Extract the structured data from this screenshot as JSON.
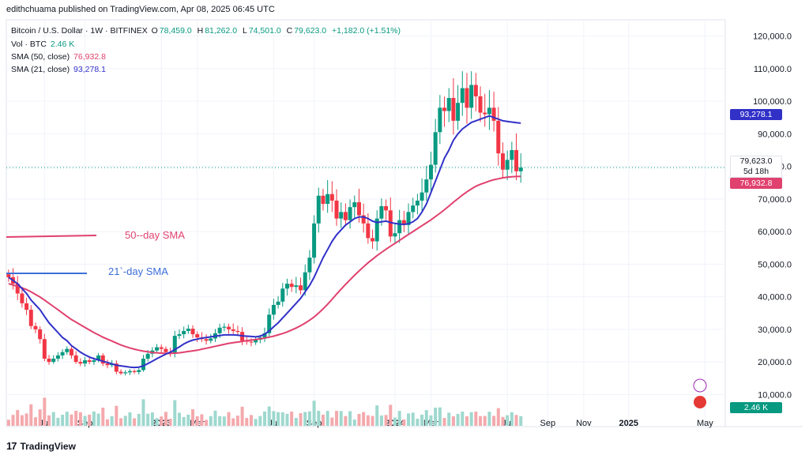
{
  "header": {
    "publisher": "edithchuama published on TradingView.com, Apr 08, 2025 06:45 UTC"
  },
  "legend": {
    "symbol": "Bitcoin / U.S. Dollar · 1W · BITFINEX",
    "ohlc": [
      {
        "k": "O",
        "v": "78,459.0"
      },
      {
        "k": "H",
        "v": "81,262.0"
      },
      {
        "k": "L",
        "v": "74,501.0"
      },
      {
        "k": "C",
        "v": "79,623.0"
      }
    ],
    "change": "+1,182.0 (+1.51%)",
    "vol_label": "Vol · BTC",
    "vol_value": "2.46 K",
    "sma50_label": "SMA (50, close)",
    "sma50_value": "76,932.8",
    "sma21_label": "SMA (21, close)",
    "sma21_value": "93,278.1"
  },
  "tags": {
    "sma21": "93,278.1",
    "price": "79,623.0",
    "countdown": "5d 18h",
    "sma50": "76,932.8",
    "volume": "2.46 K"
  },
  "brand": {
    "name": "TradingView"
  },
  "colors": {
    "up": "#089981",
    "down": "#f23645",
    "sma50": "#e0416e",
    "sma21": "#3131c8",
    "vol_up": "#9ed8ce",
    "vol_down": "#f4a9ad"
  },
  "chart_data": {
    "type": "candlestick",
    "title": "Bitcoin / U.S. Dollar · 1W · BITFINEX",
    "y_axis": {
      "min": 5000,
      "max": 125000,
      "ticks": [
        "10,000.0",
        "20,000.0",
        "30,000.0",
        "40,000.0",
        "50,000.0",
        "60,000.0",
        "70,000.0",
        "80,000.0",
        "90,000.0",
        "100,000.0",
        "110,000.0",
        "120,000.0"
      ],
      "tick_values": [
        10000,
        20000,
        30000,
        40000,
        50000,
        60000,
        70000,
        80000,
        90000,
        100000,
        110000,
        120000
      ]
    },
    "x_axis": {
      "labels": [
        {
          "t": "Jul",
          "week": 8
        },
        {
          "t": "Sep",
          "week": 17
        },
        {
          "t": "2023",
          "week": 34
        },
        {
          "t": "Mar",
          "week": 42
        },
        {
          "t": "Jul",
          "week": 59
        },
        {
          "t": "Sep",
          "week": 68
        },
        {
          "t": "2024",
          "week": 86
        },
        {
          "t": "Mar",
          "week": 94
        },
        {
          "t": "Jul",
          "week": 111
        },
        {
          "t": "Sep",
          "week": 120
        },
        {
          "t": "Nov",
          "week": 128
        },
        {
          "t": "2025",
          "week": 138
        },
        {
          "t": "May",
          "week": 155
        }
      ],
      "weeks_total": 160
    },
    "closes": [
      46000,
      44000,
      41000,
      38000,
      36000,
      31000,
      30000,
      27000,
      21000,
      20000,
      21000,
      22000,
      23000,
      24000,
      22000,
      20000,
      19500,
      20500,
      20000,
      20500,
      22000,
      19500,
      19000,
      19500,
      17000,
      16500,
      16800,
      17200,
      16900,
      17500,
      21000,
      22500,
      23500,
      24500,
      24000,
      23000,
      22500,
      28000,
      28500,
      29500,
      30200,
      28500,
      27500,
      27000,
      26500,
      27200,
      28800,
      30500,
      30800,
      30000,
      29500,
      29200,
      26500,
      26200,
      26000,
      26800,
      27500,
      28800,
      34500,
      37500,
      38500,
      42500,
      44000,
      43000,
      43500,
      42000,
      47500,
      52000,
      62500,
      71000,
      68500,
      71500,
      69500,
      64000,
      66000,
      63500,
      67500,
      69000,
      65000,
      62500,
      58000,
      57000,
      64000,
      67800,
      66500,
      58500,
      59500,
      63500,
      62000,
      66000,
      68000,
      69500,
      72000,
      76000,
      80500,
      90500,
      98000,
      97000,
      101000,
      94000,
      99500,
      104000,
      98000,
      105000,
      101500,
      96500,
      96000,
      98000,
      94000,
      84000,
      79000,
      82000,
      85000,
      78500,
      79623
    ],
    "sma21": [
      46000,
      45000,
      44000,
      42500,
      41000,
      39000,
      37500,
      36000,
      34000,
      32000,
      30500,
      29000,
      27500,
      26500,
      25000,
      24000,
      23000,
      22200,
      21500,
      21000,
      20600,
      20200,
      19800,
      19400,
      19000,
      18800,
      18600,
      18400,
      18300,
      18400,
      18800,
      19500,
      20200,
      21000,
      21700,
      22400,
      23000,
      23800,
      24600,
      25500,
      26200,
      26700,
      27000,
      27300,
      27500,
      27700,
      27900,
      28100,
      28300,
      28300,
      28300,
      28200,
      28000,
      27900,
      27800,
      27700,
      27900,
      28500,
      29500,
      30800,
      32000,
      33500,
      35000,
      36500,
      38000,
      39500,
      41500,
      43500,
      46000,
      49000,
      52000,
      54500,
      57000,
      59000,
      60500,
      62000,
      63000,
      64000,
      64500,
      64500,
      64000,
      63200,
      62800,
      63000,
      63200,
      62800,
      62500,
      62300,
      62200,
      62400,
      63000,
      64000,
      66000,
      68500,
      72000,
      75500,
      79000,
      82500,
      85000,
      88000,
      90000,
      91500,
      92500,
      93500,
      94000,
      94500,
      95000,
      95500,
      95000,
      94500,
      94000,
      93800,
      93600,
      93400,
      93278
    ],
    "sma50": [
      44000,
      43600,
      43200,
      42700,
      42200,
      41500,
      40700,
      39900,
      39000,
      38000,
      37000,
      36000,
      35000,
      34000,
      33000,
      32200,
      31400,
      30600,
      29800,
      29000,
      28300,
      27600,
      27000,
      26400,
      25800,
      25200,
      24700,
      24300,
      23900,
      23600,
      23300,
      23100,
      22900,
      22800,
      22700,
      22600,
      22600,
      22700,
      22800,
      23000,
      23200,
      23400,
      23600,
      23900,
      24200,
      24500,
      24800,
      25100,
      25400,
      25700,
      25900,
      26100,
      26300,
      26500,
      26700,
      26900,
      27100,
      27300,
      27600,
      27900,
      28300,
      28700,
      29200,
      29800,
      30400,
      31100,
      31900,
      32800,
      33800,
      35000,
      36300,
      37700,
      39200,
      40800,
      42300,
      43800,
      45200,
      46600,
      47900,
      49200,
      50400,
      51500,
      52600,
      53600,
      54600,
      55500,
      56400,
      57300,
      58200,
      59100,
      60000,
      60900,
      61800,
      62700,
      63600,
      64600,
      65600,
      66700,
      67800,
      69000,
      70100,
      71200,
      72200,
      73100,
      73900,
      74500,
      75000,
      75500,
      75900,
      76200,
      76500,
      76700,
      76800,
      76900,
      76933
    ]
  }
}
